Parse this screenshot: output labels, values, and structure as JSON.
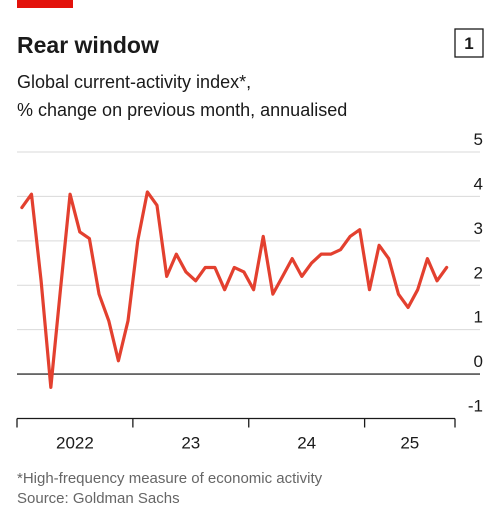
{
  "chart_data": {
    "type": "line",
    "title": "Rear window",
    "chart_number": "1",
    "subtitle": [
      "Global current-activity index*,",
      "% change on previous month, annualised"
    ],
    "footnote": "*High-frequency measure of economic activity",
    "source": "Source: Goldman Sachs",
    "x": [
      2022.042,
      2022.125,
      2022.208,
      2022.292,
      2022.375,
      2022.458,
      2022.542,
      2022.625,
      2022.708,
      2022.792,
      2022.875,
      2022.958,
      2023.042,
      2023.125,
      2023.208,
      2023.292,
      2023.375,
      2023.458,
      2023.542,
      2023.625,
      2023.708,
      2023.792,
      2023.875,
      2023.958,
      2024.042,
      2024.125,
      2024.208,
      2024.292,
      2024.375,
      2024.458,
      2024.542,
      2024.625,
      2024.708,
      2024.792,
      2024.875,
      2024.958,
      2025.042,
      2025.125,
      2025.208,
      2025.292,
      2025.375,
      2025.458,
      2025.542,
      2025.625,
      2025.708
    ],
    "series": [
      {
        "color": "#e3402f",
        "values": [
          3.75,
          4.05,
          2.1,
          -0.3,
          1.9,
          4.05,
          3.2,
          3.05,
          1.8,
          1.2,
          0.3,
          1.2,
          3.0,
          4.1,
          3.8,
          2.2,
          2.7,
          2.3,
          2.1,
          2.4,
          2.4,
          1.9,
          2.4,
          2.3,
          1.9,
          3.1,
          1.8,
          2.2,
          2.6,
          2.2,
          2.5,
          2.7,
          2.7,
          2.8,
          3.1,
          3.25,
          1.9,
          2.9,
          2.6,
          1.8,
          1.5,
          1.9,
          2.6,
          2.1,
          2.4
        ]
      }
    ],
    "xlim": [
      2022,
      2025.78
    ],
    "xticks": [
      {
        "value": 2022,
        "label": "2022"
      },
      {
        "value": 2023,
        "label": "23"
      },
      {
        "value": 2024,
        "label": "24"
      },
      {
        "value": 2025,
        "label": "25"
      }
    ],
    "ylim": [
      -1,
      5
    ],
    "yticks": [
      -1,
      0,
      1,
      2,
      3,
      4,
      5
    ],
    "grid": true
  }
}
